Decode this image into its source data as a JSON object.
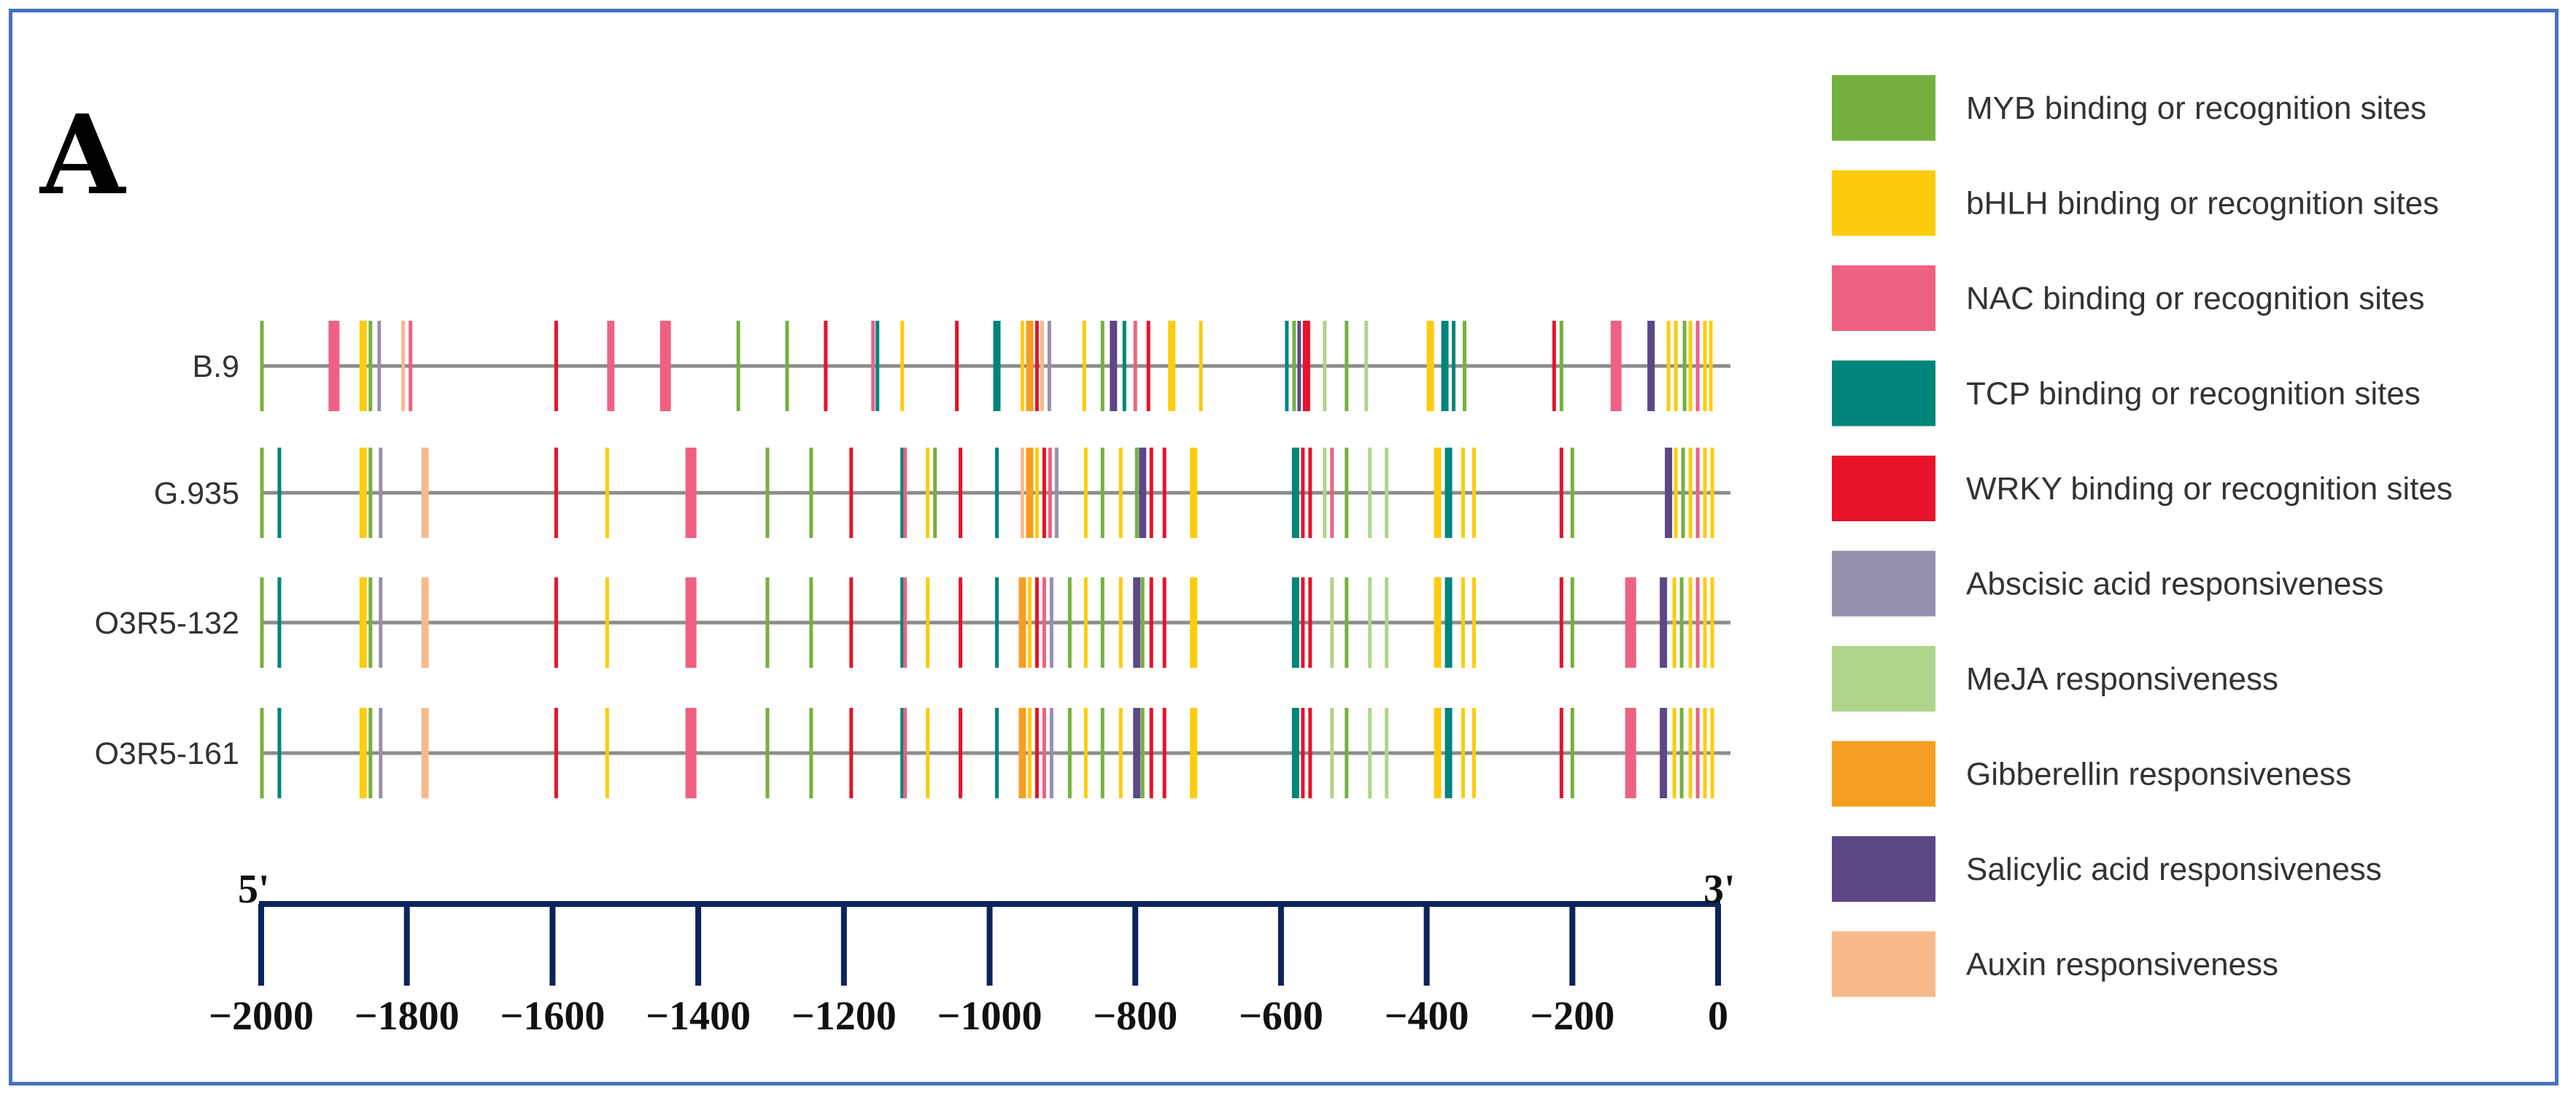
{
  "figure": {
    "panel_label": "A",
    "five_prime": "5'",
    "three_prime": "3'"
  },
  "colors": {
    "MYB": "#74b13e",
    "bHLH": "#fdcc0d",
    "NAC": "#ee6182",
    "TCP": "#00857a",
    "WRKY": "#e6132a",
    "ABA": "#9790ad",
    "MeJA": "#afd58a",
    "GA": "#f59e22",
    "SA": "#5c4787",
    "Auxin": "#f7b98a",
    "axis": "#0d235c",
    "seqline": "#8c8c8c",
    "frame": "#4472c4"
  },
  "chart_data": {
    "type": "promoter-element-map",
    "axis": {
      "min": -2000,
      "max": 0,
      "ticks": [
        -2000,
        -1800,
        -1600,
        -1400,
        -1200,
        -1000,
        -800,
        -600,
        -400,
        -200,
        0
      ],
      "tick_labels": [
        "−2000",
        "−1800",
        "−1600",
        "−1400",
        "−1200",
        "−1000",
        "−800",
        "−600",
        "−400",
        "−200",
        "0"
      ]
    },
    "legend": [
      {
        "key": "MYB",
        "label": "MYB binding or recognition sites"
      },
      {
        "key": "bHLH",
        "label": "bHLH binding or recognition sites"
      },
      {
        "key": "NAC",
        "label": "NAC binding or recognition sites"
      },
      {
        "key": "TCP",
        "label": "TCP binding or recognition sites"
      },
      {
        "key": "WRKY",
        "label": "WRKY binding or recognition sites"
      },
      {
        "key": "ABA",
        "label": "Abscisic acid responsiveness"
      },
      {
        "key": "MeJA",
        "label": "MeJA responsiveness"
      },
      {
        "key": "GA",
        "label": "Gibberellin responsiveness"
      },
      {
        "key": "SA",
        "label": "Salicylic acid responsiveness"
      },
      {
        "key": "Auxin",
        "label": "Auxin responsiveness"
      }
    ],
    "sequences": [
      {
        "name": "B.9",
        "elements": [
          [
            -1999,
            "MYB",
            1
          ],
          [
            -1900,
            "NAC",
            3
          ],
          [
            -1860,
            "bHLH",
            2
          ],
          [
            -1850,
            "MYB",
            1
          ],
          [
            -1838,
            "ABA",
            1
          ],
          [
            -1805,
            "Auxin",
            1
          ],
          [
            -1795,
            "NAC",
            1
          ],
          [
            -1595,
            "WRKY",
            1
          ],
          [
            -1520,
            "NAC",
            2
          ],
          [
            -1445,
            "NAC",
            3
          ],
          [
            -1345,
            "MYB",
            1
          ],
          [
            -1278,
            "MYB",
            1
          ],
          [
            -1225,
            "WRKY",
            1
          ],
          [
            -1160,
            "NAC",
            1
          ],
          [
            -1154,
            "TCP",
            1
          ],
          [
            -1120,
            "bHLH",
            1
          ],
          [
            -1045,
            "WRKY",
            1
          ],
          [
            -990,
            "TCP",
            2
          ],
          [
            -955,
            "bHLH",
            1
          ],
          [
            -945,
            "GA",
            2
          ],
          [
            -935,
            "WRKY",
            1
          ],
          [
            -928,
            "Auxin",
            1
          ],
          [
            -918,
            "ABA",
            1
          ],
          [
            -870,
            "bHLH",
            1
          ],
          [
            -845,
            "MYB",
            1
          ],
          [
            -830,
            "SA",
            2
          ],
          [
            -815,
            "TCP",
            1
          ],
          [
            -800,
            "NAC",
            1
          ],
          [
            -782,
            "WRKY",
            1
          ],
          [
            -750,
            "bHLH",
            2
          ],
          [
            -710,
            "bHLH",
            1
          ],
          [
            -592,
            "TCP",
            1
          ],
          [
            -582,
            "MYB",
            1
          ],
          [
            -575,
            "SA",
            1
          ],
          [
            -565,
            "WRKY",
            2
          ],
          [
            -540,
            "MeJA",
            1
          ],
          [
            -510,
            "MYB",
            1
          ],
          [
            -483,
            "MeJA",
            1
          ],
          [
            -395,
            "bHLH",
            2
          ],
          [
            -375,
            "TCP",
            2
          ],
          [
            -363,
            "TCP",
            1
          ],
          [
            -348,
            "MYB",
            1
          ],
          [
            -225,
            "WRKY",
            1
          ],
          [
            -215,
            "MYB",
            1
          ],
          [
            -140,
            "NAC",
            3
          ],
          [
            -92,
            "SA",
            2
          ],
          [
            -68,
            "bHLH",
            1
          ],
          [
            -58,
            "bHLH",
            1
          ],
          [
            -46,
            "MYB",
            1
          ],
          [
            -38,
            "bHLH",
            1
          ],
          [
            -28,
            "NAC",
            1
          ],
          [
            -18,
            "bHLH",
            1
          ],
          [
            -10,
            "bHLH",
            1
          ]
        ]
      },
      {
        "name": "G.935",
        "elements": [
          [
            -1999,
            "MYB",
            1
          ],
          [
            -1975,
            "TCP",
            1
          ],
          [
            -1860,
            "bHLH",
            2
          ],
          [
            -1850,
            "MYB",
            1
          ],
          [
            -1836,
            "ABA",
            1
          ],
          [
            -1775,
            "Auxin",
            2
          ],
          [
            -1595,
            "WRKY",
            1
          ],
          [
            -1525,
            "bHLH",
            1
          ],
          [
            -1410,
            "NAC",
            3
          ],
          [
            -1305,
            "MYB",
            1
          ],
          [
            -1245,
            "MYB",
            1
          ],
          [
            -1190,
            "WRKY",
            1
          ],
          [
            -1120,
            "TCP",
            1
          ],
          [
            -1116,
            "NAC",
            1
          ],
          [
            -1085,
            "bHLH",
            1
          ],
          [
            -1075,
            "MYB",
            1
          ],
          [
            -1040,
            "WRKY",
            1
          ],
          [
            -990,
            "TCP",
            1
          ],
          [
            -955,
            "Auxin",
            1
          ],
          [
            -945,
            "GA",
            2
          ],
          [
            -935,
            "bHLH",
            1
          ],
          [
            -925,
            "WRKY",
            1
          ],
          [
            -917,
            "NAC",
            1
          ],
          [
            -908,
            "ABA",
            1
          ],
          [
            -868,
            "bHLH",
            1
          ],
          [
            -845,
            "MYB",
            1
          ],
          [
            -820,
            "bHLH",
            1
          ],
          [
            -798,
            "MYB",
            1
          ],
          [
            -790,
            "SA",
            2
          ],
          [
            -778,
            "WRKY",
            1
          ],
          [
            -760,
            "WRKY",
            1
          ],
          [
            -720,
            "bHLH",
            2
          ],
          [
            -580,
            "TCP",
            2
          ],
          [
            -570,
            "WRKY",
            1
          ],
          [
            -560,
            "WRKY",
            1
          ],
          [
            -540,
            "MeJA",
            1
          ],
          [
            -530,
            "NAC",
            1
          ],
          [
            -510,
            "MYB",
            1
          ],
          [
            -478,
            "MeJA",
            1
          ],
          [
            -455,
            "MeJA",
            1
          ],
          [
            -385,
            "bHLH",
            2
          ],
          [
            -370,
            "TCP",
            2
          ],
          [
            -350,
            "bHLH",
            1
          ],
          [
            -335,
            "bHLH",
            1
          ],
          [
            -215,
            "WRKY",
            1
          ],
          [
            -200,
            "MYB",
            1
          ],
          [
            -68,
            "SA",
            2
          ],
          [
            -58,
            "bHLH",
            1
          ],
          [
            -48,
            "MYB",
            1
          ],
          [
            -38,
            "bHLH",
            1
          ],
          [
            -28,
            "NAC",
            1
          ],
          [
            -18,
            "bHLH",
            1
          ],
          [
            -8,
            "bHLH",
            1
          ]
        ]
      },
      {
        "name": "O3R5-132",
        "elements": [
          [
            -1999,
            "MYB",
            1
          ],
          [
            -1975,
            "TCP",
            1
          ],
          [
            -1860,
            "bHLH",
            2
          ],
          [
            -1850,
            "MYB",
            1
          ],
          [
            -1836,
            "ABA",
            1
          ],
          [
            -1775,
            "Auxin",
            2
          ],
          [
            -1595,
            "WRKY",
            1
          ],
          [
            -1525,
            "bHLH",
            1
          ],
          [
            -1410,
            "NAC",
            3
          ],
          [
            -1305,
            "MYB",
            1
          ],
          [
            -1245,
            "MYB",
            1
          ],
          [
            -1190,
            "WRKY",
            1
          ],
          [
            -1120,
            "TCP",
            1
          ],
          [
            -1116,
            "NAC",
            1
          ],
          [
            -1085,
            "bHLH",
            1
          ],
          [
            -1040,
            "WRKY",
            1
          ],
          [
            -990,
            "TCP",
            1
          ],
          [
            -955,
            "GA",
            2
          ],
          [
            -945,
            "bHLH",
            1
          ],
          [
            -935,
            "WRKY",
            1
          ],
          [
            -925,
            "NAC",
            1
          ],
          [
            -915,
            "ABA",
            1
          ],
          [
            -890,
            "MYB",
            1
          ],
          [
            -868,
            "bHLH",
            1
          ],
          [
            -845,
            "MYB",
            1
          ],
          [
            -820,
            "bHLH",
            1
          ],
          [
            -798,
            "SA",
            2
          ],
          [
            -790,
            "MYB",
            1
          ],
          [
            -778,
            "WRKY",
            1
          ],
          [
            -760,
            "WRKY",
            1
          ],
          [
            -720,
            "bHLH",
            2
          ],
          [
            -580,
            "TCP",
            2
          ],
          [
            -570,
            "WRKY",
            1
          ],
          [
            -560,
            "WRKY",
            1
          ],
          [
            -530,
            "MeJA",
            1
          ],
          [
            -510,
            "MYB",
            1
          ],
          [
            -478,
            "MeJA",
            1
          ],
          [
            -455,
            "MeJA",
            1
          ],
          [
            -385,
            "bHLH",
            2
          ],
          [
            -370,
            "TCP",
            2
          ],
          [
            -350,
            "bHLH",
            1
          ],
          [
            -335,
            "bHLH",
            1
          ],
          [
            -215,
            "WRKY",
            1
          ],
          [
            -200,
            "MYB",
            1
          ],
          [
            -120,
            "NAC",
            3
          ],
          [
            -75,
            "SA",
            2
          ],
          [
            -60,
            "bHLH",
            1
          ],
          [
            -50,
            "MYB",
            1
          ],
          [
            -38,
            "bHLH",
            1
          ],
          [
            -28,
            "NAC",
            1
          ],
          [
            -18,
            "bHLH",
            1
          ],
          [
            -8,
            "bHLH",
            1
          ]
        ]
      },
      {
        "name": "O3R5-161",
        "elements": [
          [
            -1999,
            "MYB",
            1
          ],
          [
            -1975,
            "TCP",
            1
          ],
          [
            -1860,
            "bHLH",
            2
          ],
          [
            -1850,
            "MYB",
            1
          ],
          [
            -1836,
            "ABA",
            1
          ],
          [
            -1775,
            "Auxin",
            2
          ],
          [
            -1595,
            "WRKY",
            1
          ],
          [
            -1525,
            "bHLH",
            1
          ],
          [
            -1410,
            "NAC",
            3
          ],
          [
            -1305,
            "MYB",
            1
          ],
          [
            -1245,
            "MYB",
            1
          ],
          [
            -1190,
            "WRKY",
            1
          ],
          [
            -1120,
            "TCP",
            1
          ],
          [
            -1116,
            "NAC",
            1
          ],
          [
            -1085,
            "bHLH",
            1
          ],
          [
            -1040,
            "WRKY",
            1
          ],
          [
            -990,
            "TCP",
            1
          ],
          [
            -955,
            "GA",
            2
          ],
          [
            -945,
            "bHLH",
            1
          ],
          [
            -935,
            "WRKY",
            1
          ],
          [
            -925,
            "NAC",
            1
          ],
          [
            -915,
            "ABA",
            1
          ],
          [
            -890,
            "MYB",
            1
          ],
          [
            -868,
            "bHLH",
            1
          ],
          [
            -845,
            "MYB",
            1
          ],
          [
            -820,
            "bHLH",
            1
          ],
          [
            -798,
            "SA",
            2
          ],
          [
            -790,
            "MYB",
            1
          ],
          [
            -778,
            "WRKY",
            1
          ],
          [
            -760,
            "WRKY",
            1
          ],
          [
            -720,
            "bHLH",
            2
          ],
          [
            -580,
            "TCP",
            2
          ],
          [
            -570,
            "WRKY",
            1
          ],
          [
            -560,
            "WRKY",
            1
          ],
          [
            -530,
            "MeJA",
            1
          ],
          [
            -510,
            "MYB",
            1
          ],
          [
            -478,
            "MeJA",
            1
          ],
          [
            -455,
            "MeJA",
            1
          ],
          [
            -385,
            "bHLH",
            2
          ],
          [
            -370,
            "TCP",
            2
          ],
          [
            -350,
            "bHLH",
            1
          ],
          [
            -335,
            "bHLH",
            1
          ],
          [
            -215,
            "WRKY",
            1
          ],
          [
            -200,
            "MYB",
            1
          ],
          [
            -120,
            "NAC",
            3
          ],
          [
            -75,
            "SA",
            2
          ],
          [
            -60,
            "bHLH",
            1
          ],
          [
            -50,
            "MYB",
            1
          ],
          [
            -38,
            "bHLH",
            1
          ],
          [
            -28,
            "NAC",
            1
          ],
          [
            -18,
            "bHLH",
            1
          ],
          [
            -8,
            "bHLH",
            1
          ]
        ]
      }
    ]
  }
}
